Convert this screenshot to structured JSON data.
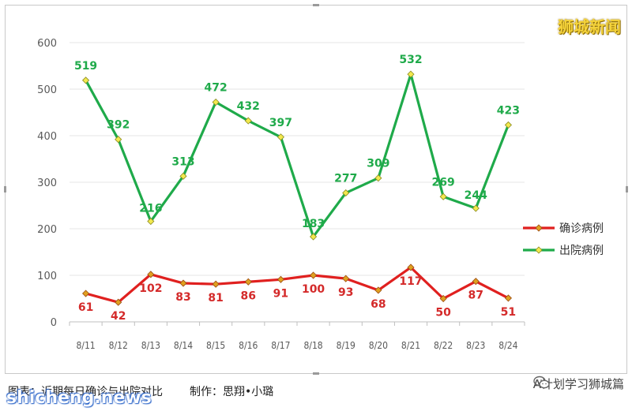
{
  "chart_data": {
    "type": "line",
    "categories": [
      "8/11",
      "8/12",
      "8/13",
      "8/14",
      "8/15",
      "8/16",
      "8/17",
      "8/18",
      "8/19",
      "8/20",
      "8/21",
      "8/22",
      "8/23",
      "8/24"
    ],
    "series": [
      {
        "name": "确诊病例",
        "color": "#e0201f",
        "values": [
          61,
          42,
          102,
          83,
          81,
          86,
          91,
          100,
          93,
          68,
          117,
          50,
          87,
          51
        ],
        "labels": [
          "61",
          "42",
          "102",
          "83",
          "81",
          "86",
          "91",
          "100",
          "93",
          "68",
          "117",
          "50",
          "87",
          "51"
        ]
      },
      {
        "name": "出院病例",
        "color": "#1faa4a",
        "values": [
          519,
          392,
          216,
          313,
          472,
          432,
          397,
          183,
          277,
          309,
          532,
          269,
          244,
          423
        ],
        "labels": [
          "519",
          "392",
          "216",
          "313",
          "472",
          "432",
          "397",
          "183",
          "277",
          "309",
          "532",
          "269",
          "244",
          "423"
        ]
      }
    ],
    "ylim": [
      0,
      600
    ],
    "yticks": [
      "0",
      "100",
      "200",
      "300",
      "400",
      "500",
      "600"
    ],
    "grid": true,
    "legend": "right"
  },
  "caption": {
    "left": "图表：近期每日确诊与出院对比",
    "right": "制作：思翔•小璐"
  },
  "brand_top": "狮城新闻",
  "brand_bottom": "shicheng.news",
  "wechat_account": "A计划学习狮城篇"
}
